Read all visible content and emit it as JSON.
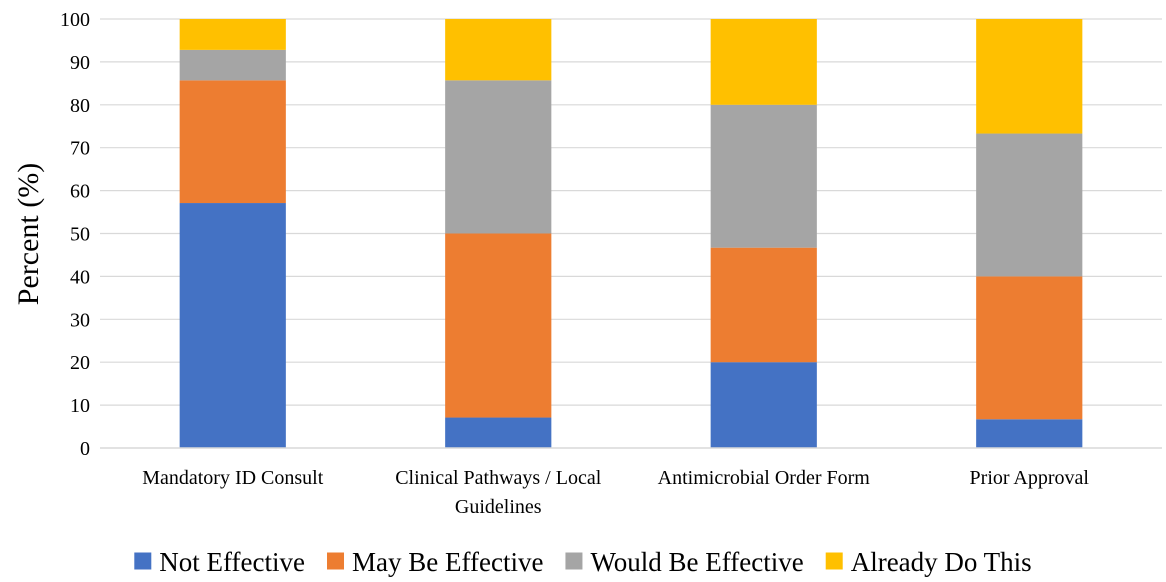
{
  "chart_data": {
    "type": "bar",
    "stacked": true,
    "categories": [
      "Mandatory ID Consult",
      "Clinical Pathways / Local Guidelines",
      "Antimicrobial Order Form",
      "Prior Approval"
    ],
    "category_lines": [
      [
        "Mandatory ID Consult"
      ],
      [
        "Clinical Pathways / Local",
        "Guidelines"
      ],
      [
        "Antimicrobial Order Form"
      ],
      [
        "Prior Approval"
      ]
    ],
    "series": [
      {
        "name": "Not Effective",
        "values": [
          57.1,
          7.1,
          20.0,
          6.7
        ],
        "color": "#4472C4"
      },
      {
        "name": "May Be Effective",
        "values": [
          28.6,
          42.9,
          26.7,
          33.3
        ],
        "color": "#ED7D31"
      },
      {
        "name": "Would Be Effective",
        "values": [
          7.1,
          35.7,
          33.3,
          33.3
        ],
        "color": "#A5A5A5"
      },
      {
        "name": "Already Do This",
        "values": [
          7.2,
          14.3,
          20.0,
          26.7
        ],
        "color": "#FFC000"
      }
    ],
    "ylabel": "Percent (%)",
    "xlabel": "",
    "title": "",
    "ylim": [
      0,
      100
    ],
    "yticks": [
      0,
      10,
      20,
      30,
      40,
      50,
      60,
      70,
      80,
      90,
      100
    ],
    "grid": true,
    "legend_position": "bottom"
  }
}
